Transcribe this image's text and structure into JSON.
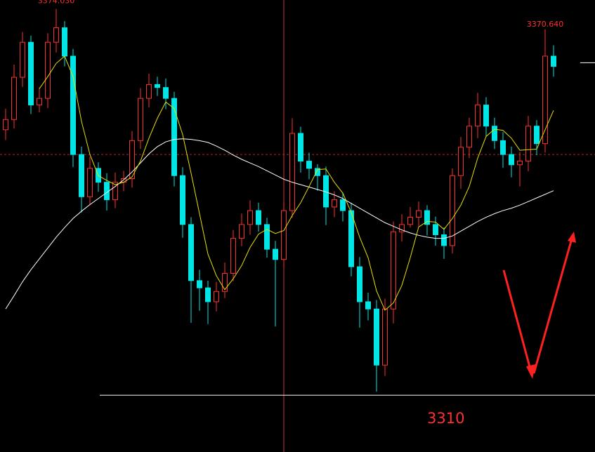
{
  "chart_data": {
    "type": "candlestick",
    "open": [
      3354.0,
      3355.7,
      3362.7,
      3368.5,
      3358.1,
      3359.2,
      3368.5,
      3370.9,
      3366.2,
      3349.9,
      3342.9,
      3347.6,
      3345.3,
      3342.4,
      3345.3,
      3345.9,
      3352.2,
      3359.2,
      3361.5,
      3361.0,
      3359.2,
      3346.4,
      3338.3,
      3329.0,
      3327.8,
      3325.5,
      3327.2,
      3330.2,
      3336.0,
      3338.3,
      3340.6,
      3338.3,
      3334.2,
      3332.5,
      3340.6,
      3353.4,
      3348.8,
      3347.6,
      3346.4,
      3341.2,
      3342.4,
      3340.6,
      3331.3,
      3325.5,
      3324.3,
      3315.0,
      3324.3,
      3337.1,
      3338.3,
      3339.5,
      3340.6,
      3338.3,
      3336.6,
      3334.8,
      3346.4,
      3351.1,
      3354.6,
      3358.1,
      3354.6,
      3352.2,
      3349.9,
      3348.2,
      3348.8,
      3354.6,
      3351.7,
      3366.2
    ],
    "high": [
      3357.5,
      3364.8,
      3370.2,
      3369.6,
      3361.0,
      3370.0,
      3374.03,
      3372.0,
      3367.4,
      3351.2,
      3349.5,
      3348.6,
      3346.8,
      3346.9,
      3347.2,
      3353.8,
      3360.9,
      3363.3,
      3362.8,
      3362.5,
      3360.3,
      3347.8,
      3339.5,
      3330.8,
      3329.0,
      3328.8,
      3332.0,
      3337.4,
      3340.1,
      3342.3,
      3341.9,
      3339.4,
      3335.6,
      3342.0,
      3355.9,
      3354.5,
      3350.2,
      3348.3,
      3347.9,
      3343.8,
      3343.6,
      3341.9,
      3332.9,
      3327.0,
      3325.8,
      3326.0,
      3338.8,
      3340.0,
      3341.2,
      3342.1,
      3341.5,
      3339.6,
      3337.8,
      3347.6,
      3352.8,
      3356.0,
      3360.1,
      3359.4,
      3356.0,
      3353.6,
      3351.2,
      3350.3,
      3356.3,
      3355.6,
      3370.64,
      3368.0
    ],
    "low": [
      3352.3,
      3354.2,
      3361.1,
      3356.6,
      3356.9,
      3357.6,
      3366.8,
      3364.5,
      3347.8,
      3340.3,
      3341.5,
      3343.7,
      3340.6,
      3341.0,
      3343.8,
      3344.4,
      3350.8,
      3357.7,
      3359.6,
      3357.4,
      3344.6,
      3336.1,
      3322.0,
      3324.0,
      3321.8,
      3323.9,
      3326.1,
      3328.9,
      3334.7,
      3336.6,
      3337.1,
      3332.8,
      3321.4,
      3331.0,
      3339.4,
      3346.9,
      3345.8,
      3343.9,
      3338.2,
      3339.5,
      3338.8,
      3329.7,
      3321.2,
      3322.4,
      3310.6,
      3313.2,
      3321.9,
      3335.5,
      3337.8,
      3338.0,
      3336.5,
      3334.8,
      3332.6,
      3333.5,
      3344.2,
      3349.3,
      3352.6,
      3352.8,
      3350.8,
      3347.7,
      3346.1,
      3344.6,
      3347.1,
      3349.8,
      3350.2,
      3362.8
    ],
    "close": [
      3355.7,
      3362.7,
      3368.5,
      3358.1,
      3359.2,
      3368.5,
      3370.9,
      3366.2,
      3349.9,
      3342.9,
      3347.6,
      3345.3,
      3342.4,
      3345.3,
      3345.9,
      3352.2,
      3359.2,
      3361.5,
      3361.0,
      3359.2,
      3346.4,
      3338.3,
      3329.0,
      3327.8,
      3325.5,
      3327.2,
      3330.2,
      3336.0,
      3338.3,
      3340.6,
      3338.3,
      3334.2,
      3332.5,
      3340.6,
      3353.4,
      3348.8,
      3347.6,
      3346.4,
      3341.2,
      3342.4,
      3340.6,
      3331.3,
      3325.5,
      3324.3,
      3315.0,
      3324.3,
      3337.1,
      3338.3,
      3339.5,
      3340.6,
      3338.3,
      3336.6,
      3334.8,
      3346.4,
      3351.1,
      3354.6,
      3358.1,
      3354.6,
      3352.2,
      3349.9,
      3348.2,
      3348.8,
      3354.6,
      3351.7,
      3366.2,
      3364.5
    ],
    "ma_fast": [
      null,
      null,
      null,
      null,
      3360.8,
      3362.8,
      3365.0,
      3366.2,
      3362.8,
      3355.4,
      3349.9,
      3346.4,
      3345.6,
      3344.9,
      3345.3,
      3346.2,
      3348.8,
      3352.6,
      3355.9,
      3358.6,
      3357.5,
      3353.2,
      3346.8,
      3340.1,
      3333.4,
      3329.8,
      3327.5,
      3329.3,
      3331.5,
      3334.5,
      3336.7,
      3337.5,
      3336.8,
      3337.3,
      3339.8,
      3341.9,
      3344.6,
      3347.4,
      3347.5,
      3345.3,
      3343.5,
      3340.3,
      3336.2,
      3332.8,
      3327.3,
      3324.1,
      3325.3,
      3328.2,
      3332.8,
      3337.9,
      3338.8,
      3338.7,
      3337.5,
      3339.3,
      3341.5,
      3344.6,
      3349.3,
      3352.9,
      3354.1,
      3353.9,
      3352.6,
      3350.6,
      3350.7,
      3350.8,
      3354.0,
      3357.2
    ],
    "ma_slow": [
      3324.3,
      3326.5,
      3328.8,
      3330.8,
      3332.6,
      3334.4,
      3336.2,
      3337.8,
      3339.3,
      3340.5,
      3341.6,
      3342.6,
      3343.6,
      3344.6,
      3345.7,
      3347.0,
      3348.5,
      3350.0,
      3351.2,
      3352.0,
      3352.4,
      3352.5,
      3352.4,
      3352.2,
      3351.9,
      3351.3,
      3350.6,
      3349.8,
      3349.1,
      3348.5,
      3347.9,
      3347.2,
      3346.5,
      3345.8,
      3345.3,
      3344.9,
      3344.5,
      3344.1,
      3343.7,
      3343.2,
      3342.6,
      3341.8,
      3341.0,
      3340.2,
      3339.4,
      3338.6,
      3338.0,
      3337.4,
      3336.9,
      3336.5,
      3336.2,
      3336.0,
      3336.0,
      3336.4,
      3337.2,
      3338.0,
      3338.8,
      3339.5,
      3340.1,
      3340.6,
      3341.0,
      3341.5,
      3342.1,
      3342.7,
      3343.3,
      3343.9
    ],
    "up_color": "#ff3030",
    "down_color": "#00e5e5",
    "ma_fast_color": "#e8e000",
    "ma_slow_color": "#ffffff",
    "ylim": [
      3300.6,
      3375.5
    ],
    "reference_line": 3349.9,
    "crosshair_index": 33,
    "marker_price": 3365.1,
    "annotations": [
      {
        "value": 3374.03,
        "label": "3374.030"
      },
      {
        "value": 3370.64,
        "label": "3370.640"
      },
      {
        "value": 3310,
        "label": "3310"
      }
    ]
  }
}
